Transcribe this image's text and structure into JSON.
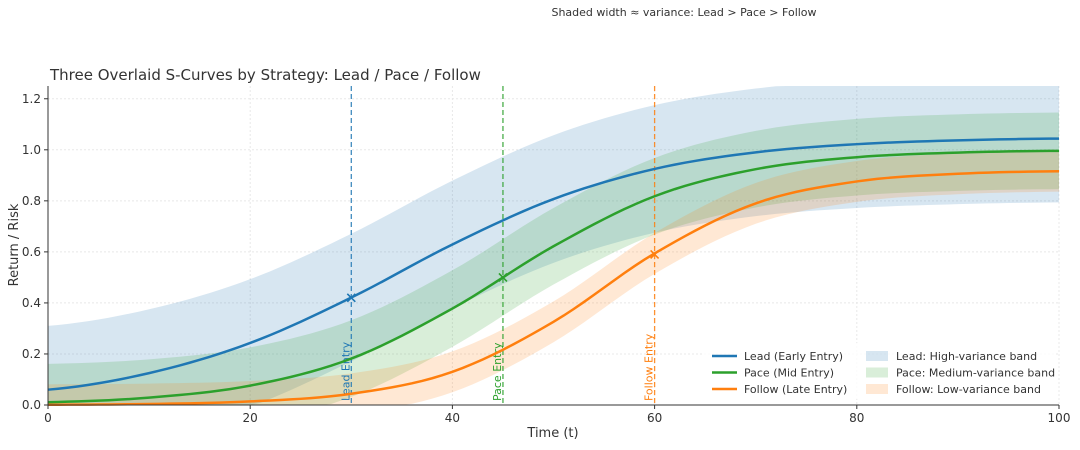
{
  "chart_data": {
    "type": "line",
    "title": "Three Overlaid S-Curves by Strategy: Lead / Pace / Follow",
    "annotation": "Shaded width ≈ variance: Lead > Pace > Follow",
    "xlabel": "Time (t)",
    "ylabel": "Return / Risk",
    "xlim": [
      0,
      100
    ],
    "ylim": [
      0,
      1.25
    ],
    "xticks": [
      "0",
      "20",
      "40",
      "60",
      "80",
      "100"
    ],
    "yticks": [
      "0.0",
      "0.2",
      "0.4",
      "0.6",
      "0.8",
      "1.0",
      "1.2"
    ],
    "grid": true,
    "legend_position": "bottom-right",
    "x": [
      0,
      10,
      20,
      30,
      40,
      50,
      60,
      70,
      80,
      90,
      100
    ],
    "series": [
      {
        "name": "Lead (Early Entry)",
        "color": "#1f77b4",
        "values": [
          0.06,
          0.125,
          0.243,
          0.421,
          0.629,
          0.807,
          0.925,
          0.99,
          1.022,
          1.037,
          1.044
        ],
        "band_name": "Lead: High-variance band",
        "band_halfwidth": 0.25,
        "entry": {
          "x": 30,
          "y": 0.42,
          "label": "Lead Entry"
        }
      },
      {
        "name": "Pace (Mid Entry)",
        "color": "#2ca02c",
        "values": [
          0.011,
          0.029,
          0.076,
          0.182,
          0.378,
          0.622,
          0.818,
          0.924,
          0.971,
          0.989,
          0.996
        ],
        "band_name": "Pace: Medium-variance band",
        "band_halfwidth": 0.15,
        "entry": {
          "x": 45,
          "y": 0.5,
          "label": "Pace Entry"
        }
      },
      {
        "name": "Follow (Late Entry)",
        "color": "#ff7f0e",
        "values": [
          0.001,
          0.004,
          0.014,
          0.044,
          0.13,
          0.326,
          0.594,
          0.79,
          0.876,
          0.906,
          0.916
        ],
        "band_name": "Follow: Low-variance band",
        "band_halfwidth": 0.08,
        "entry": {
          "x": 60,
          "y": 0.59,
          "label": "Follow Entry"
        }
      }
    ]
  }
}
